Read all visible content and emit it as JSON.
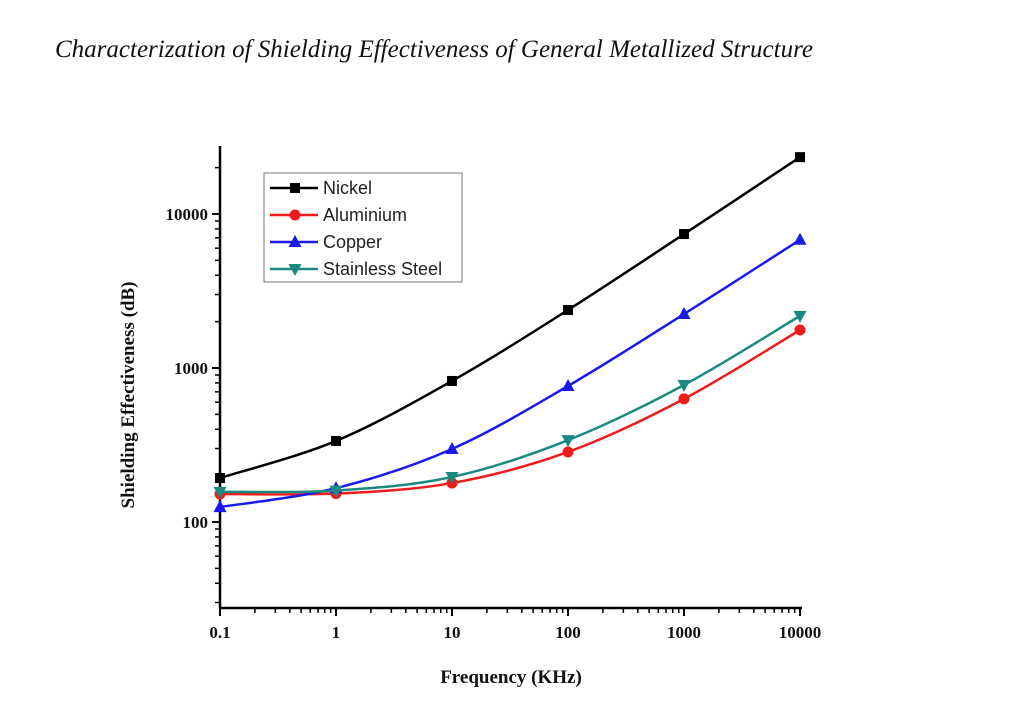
{
  "page": {
    "title": "Characterization of Shielding Effectiveness of General Metallized Structure"
  },
  "chart_data": {
    "type": "line",
    "title": "",
    "xlabel": "Frequency (KHz)",
    "ylabel": "Shielding Effectiveness (dB)",
    "xscale": "log",
    "yscale": "log",
    "xlim": [
      0.1,
      10000
    ],
    "ylim": [
      28,
      27000
    ],
    "x_ticks": [
      "0.1",
      "1",
      "10",
      "100",
      "1000",
      "10000"
    ],
    "y_ticks": [
      "100",
      "1000",
      "10000"
    ],
    "grid": false,
    "legend_position": "top-left",
    "x": [
      0.1,
      1,
      10,
      100,
      1000,
      10000
    ],
    "series": [
      {
        "name": "Nickel",
        "color": "#000000",
        "marker": "square",
        "values": [
          193,
          336,
          824,
          2380,
          7410,
          23400
        ]
      },
      {
        "name": "Aluminium",
        "color": "#ee1c1c",
        "marker": "circle",
        "values": [
          152,
          153,
          179,
          285,
          630,
          1765
        ]
      },
      {
        "name": "Copper",
        "color": "#1a1aee",
        "marker": "triangle-up",
        "values": [
          125,
          166,
          298,
          764,
          2240,
          6800
        ]
      },
      {
        "name": "Stainless Steel",
        "color": "#1a8a80",
        "marker": "triangle-down",
        "values": [
          157,
          160,
          196,
          340,
          776,
          2180
        ]
      }
    ]
  }
}
